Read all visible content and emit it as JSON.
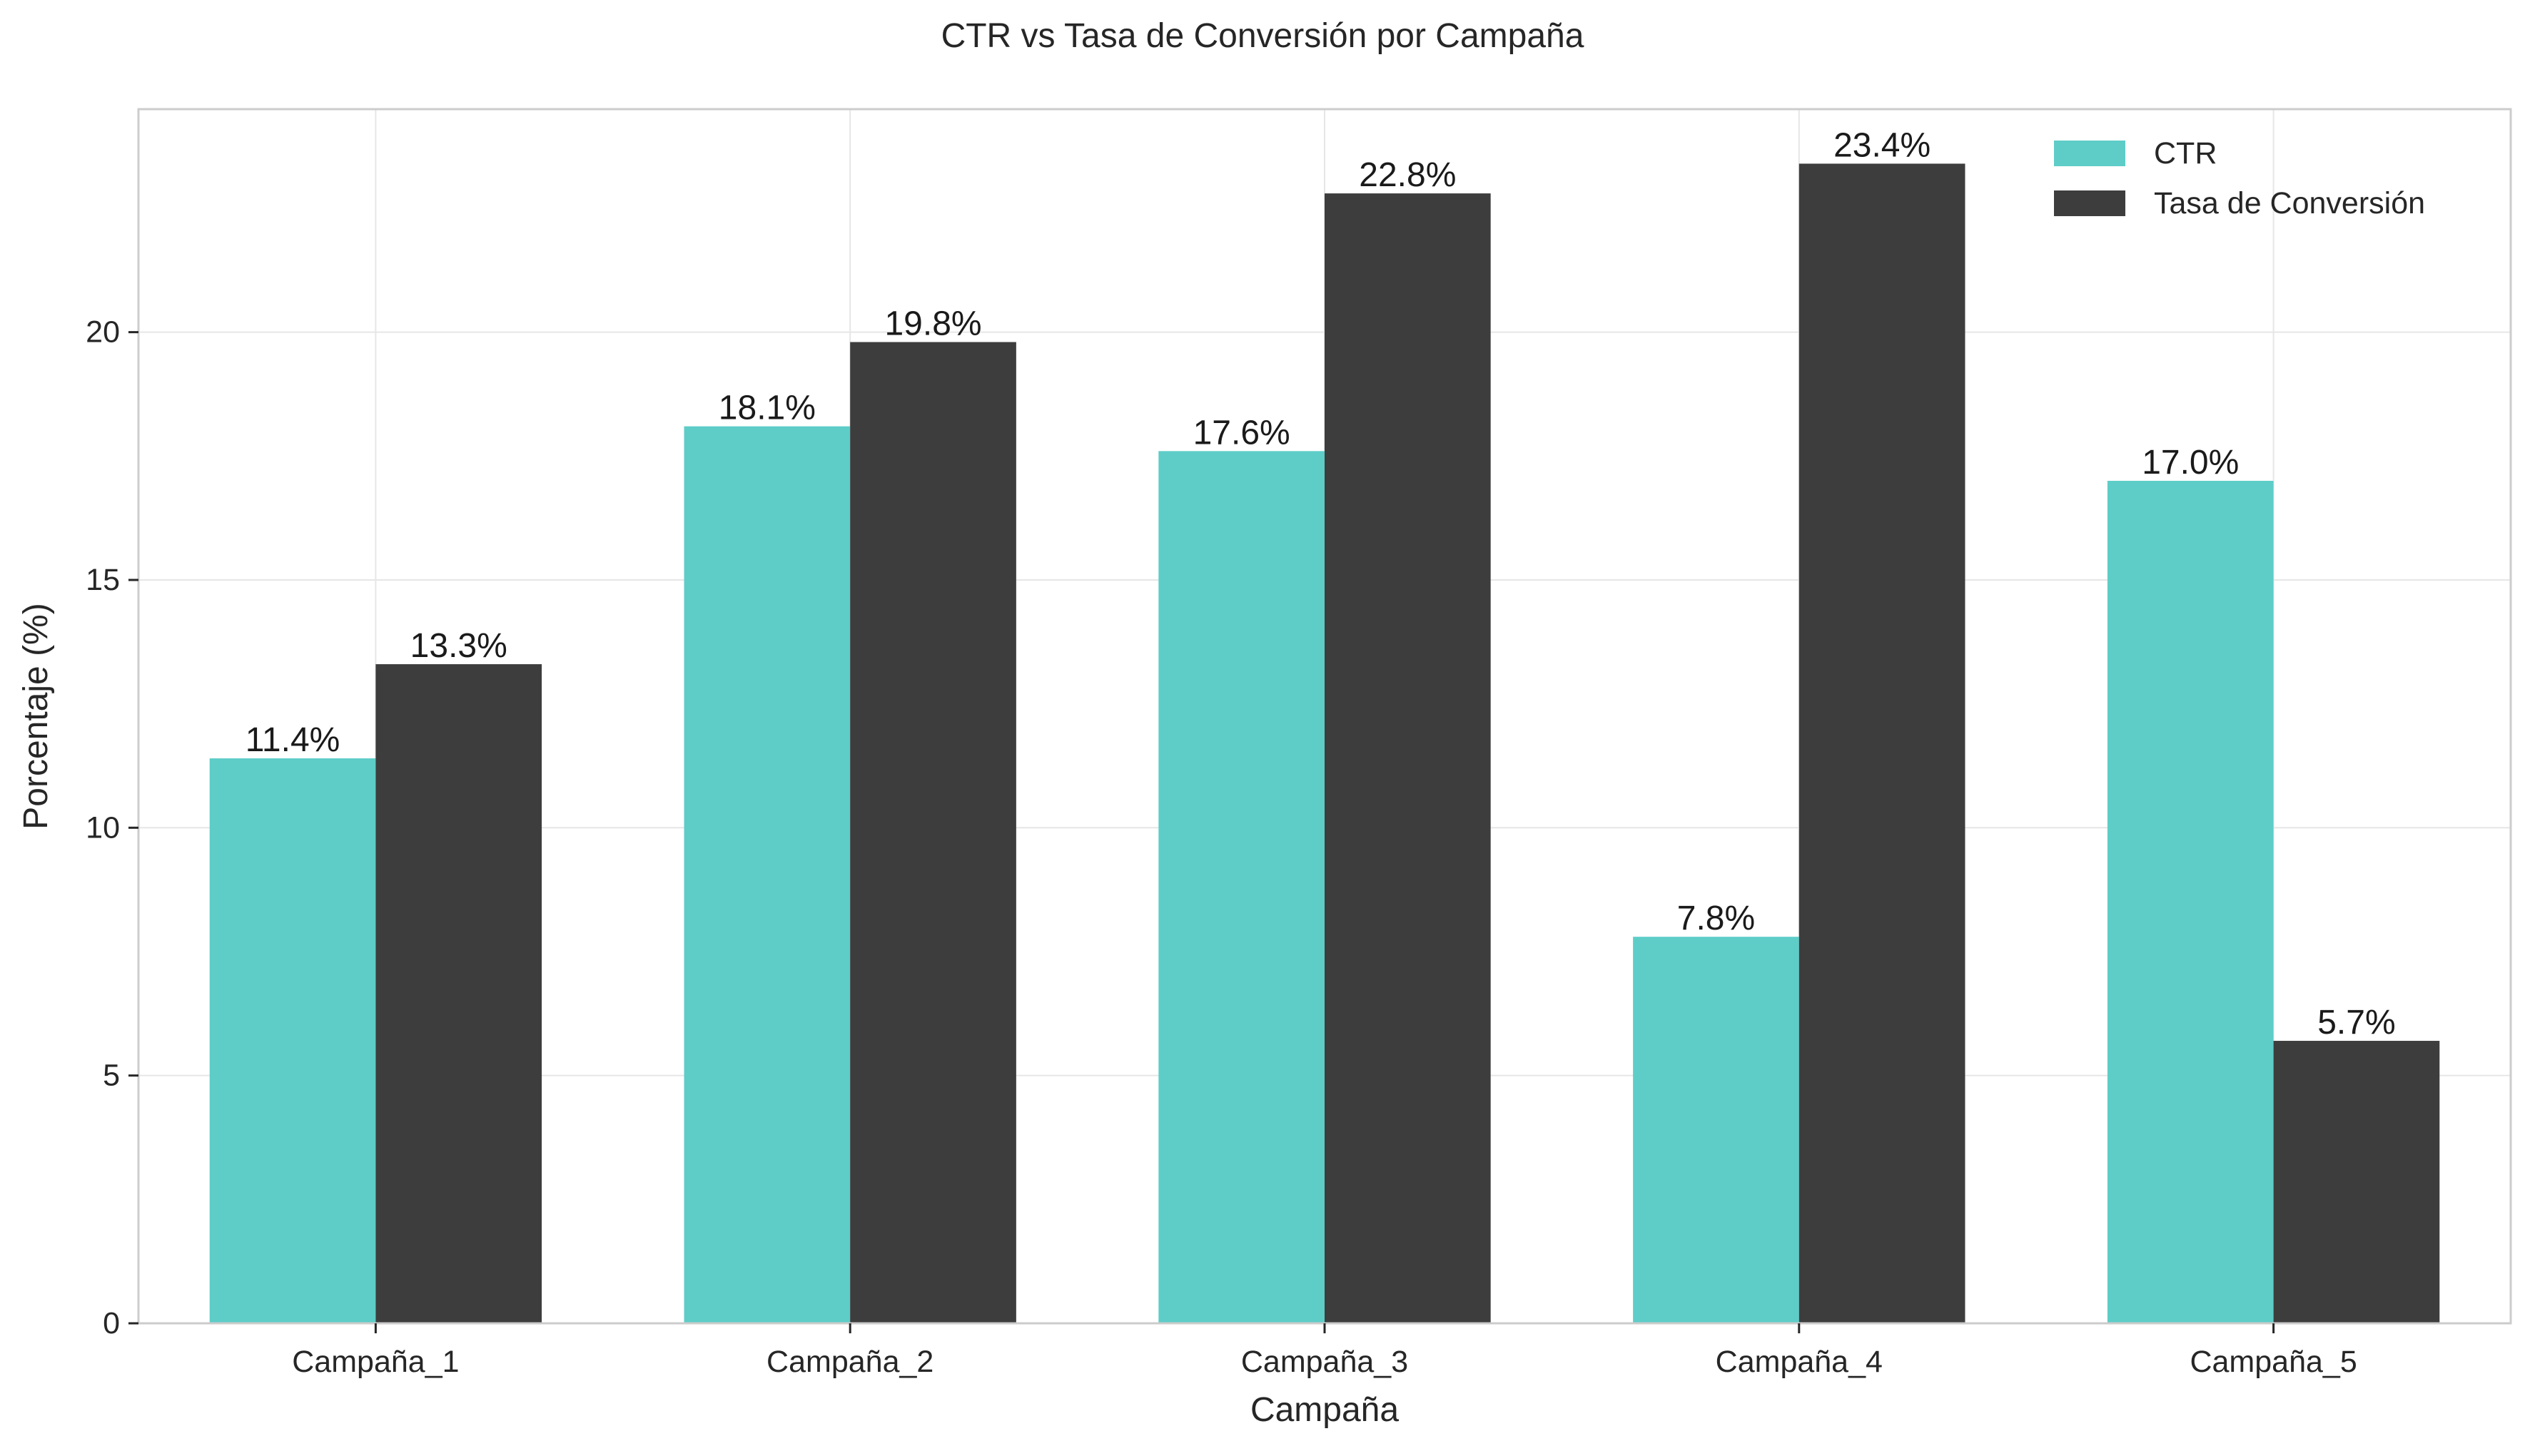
{
  "chart_data": {
    "type": "bar",
    "title": "CTR vs Tasa de Conversión por Campaña",
    "xlabel": "Campaña",
    "ylabel": "Porcentaje (%)",
    "categories": [
      "Campaña_1",
      "Campaña_2",
      "Campaña_3",
      "Campaña_4",
      "Campaña_5"
    ],
    "series": [
      {
        "name": "CTR",
        "color": "#5ecdc8",
        "values": [
          11.4,
          18.1,
          17.6,
          7.8,
          17.0
        ],
        "labels": [
          "11.4%",
          "18.1%",
          "17.6%",
          "7.8%",
          "17.0%"
        ]
      },
      {
        "name": "Tasa de Conversión",
        "color": "#3d3d3d",
        "values": [
          13.3,
          19.8,
          22.8,
          23.4,
          5.7
        ],
        "labels": [
          "13.3%",
          "19.8%",
          "22.8%",
          "23.4%",
          "5.7%"
        ]
      }
    ],
    "ylim": [
      0,
      24.5
    ],
    "yticks": [
      0,
      5,
      10,
      15,
      20
    ],
    "ytick_labels": [
      "0",
      "5",
      "10",
      "15",
      "20"
    ],
    "grid": true,
    "legend_position": "top-right"
  }
}
